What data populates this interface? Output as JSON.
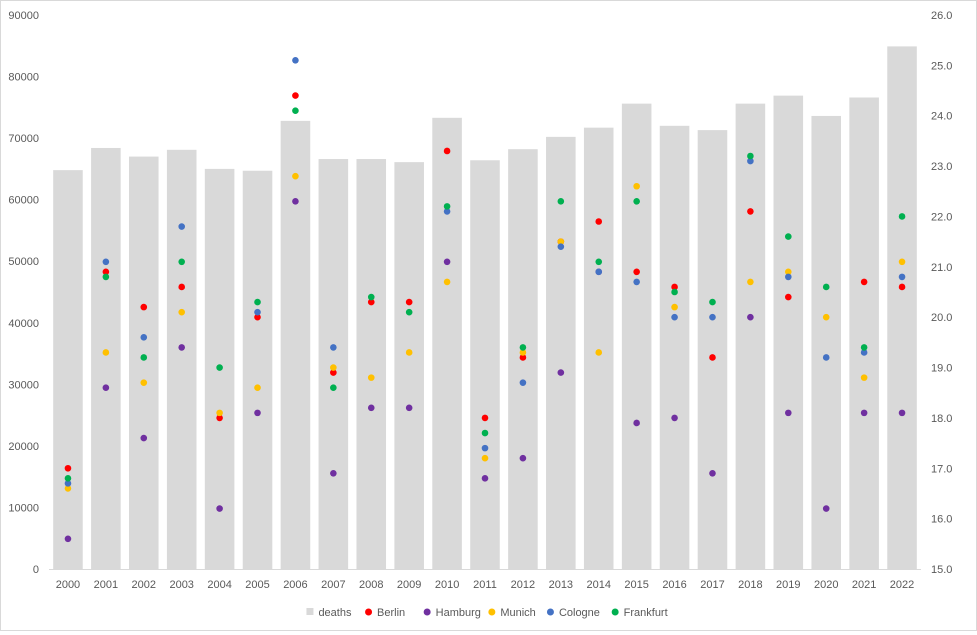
{
  "chart_data": {
    "type": "bar",
    "categories": [
      "2000",
      "2001",
      "2002",
      "2003",
      "2004",
      "2005",
      "2006",
      "2007",
      "2008",
      "2009",
      "2010",
      "2011",
      "2012",
      "2013",
      "2014",
      "2015",
      "2016",
      "2017",
      "2018",
      "2019",
      "2020",
      "2021",
      "2022"
    ],
    "bar_series": {
      "name": "deaths",
      "color": "#d9d9d9",
      "axis": "left",
      "values": [
        64800,
        68400,
        67000,
        68100,
        65000,
        64700,
        72800,
        66600,
        66600,
        66100,
        73300,
        66400,
        68200,
        70200,
        71700,
        75600,
        72000,
        71300,
        75600,
        76900,
        73600,
        76600,
        84900
      ]
    },
    "scatter_series": [
      {
        "name": "Berlin",
        "color": "#ff0000",
        "axis": "right",
        "values": [
          17.0,
          20.9,
          20.2,
          20.6,
          18.0,
          20.0,
          24.4,
          18.9,
          20.3,
          20.3,
          23.3,
          18.0,
          19.2,
          21.5,
          21.9,
          20.9,
          20.6,
          19.2,
          22.1,
          20.4,
          null,
          20.7,
          20.6
        ]
      },
      {
        "name": "Hamburg",
        "color": "#7030a0",
        "axis": "right",
        "values": [
          15.6,
          18.6,
          17.6,
          19.4,
          16.2,
          18.1,
          22.3,
          16.9,
          18.2,
          18.2,
          21.1,
          16.8,
          17.2,
          18.9,
          20.9,
          17.9,
          18.0,
          16.9,
          20.0,
          18.1,
          16.2,
          18.1,
          18.1
        ]
      },
      {
        "name": "Munich",
        "color": "#ffc000",
        "axis": "right",
        "values": [
          16.6,
          19.3,
          18.7,
          20.1,
          18.1,
          18.6,
          22.8,
          19.0,
          18.8,
          19.3,
          20.7,
          17.2,
          19.3,
          21.5,
          19.3,
          22.6,
          20.2,
          null,
          20.7,
          20.9,
          20.0,
          18.8,
          21.1
        ]
      },
      {
        "name": "Cologne",
        "color": "#4472c4",
        "axis": "right",
        "values": [
          16.7,
          21.1,
          19.6,
          21.8,
          null,
          20.1,
          25.1,
          19.4,
          null,
          null,
          22.1,
          17.4,
          18.7,
          21.4,
          20.9,
          20.7,
          20.0,
          20.0,
          23.1,
          20.8,
          19.2,
          19.3,
          20.8
        ]
      },
      {
        "name": "Frankfurt",
        "color": "#00b050",
        "axis": "right",
        "values": [
          16.8,
          20.8,
          19.2,
          21.1,
          19.0,
          20.3,
          24.1,
          18.6,
          20.4,
          20.1,
          22.2,
          17.7,
          19.4,
          22.3,
          21.1,
          22.3,
          20.5,
          20.3,
          23.2,
          21.6,
          20.6,
          19.4,
          22.0
        ]
      }
    ],
    "y_left": {
      "min": 0,
      "max": 90000,
      "step": 10000,
      "ticks": [
        "0",
        "10000",
        "20000",
        "30000",
        "40000",
        "50000",
        "60000",
        "70000",
        "80000",
        "90000"
      ]
    },
    "y_right": {
      "min": 15.0,
      "max": 26.0,
      "step": 1.0,
      "ticks": [
        "15.0",
        "16.0",
        "17.0",
        "18.0",
        "19.0",
        "20.0",
        "21.0",
        "22.0",
        "23.0",
        "24.0",
        "25.0",
        "26.0"
      ]
    },
    "legend_position": "bottom",
    "legend": [
      {
        "label": "deaths",
        "color": "#d9d9d9",
        "marker": "square"
      },
      {
        "label": "Berlin",
        "color": "#ff0000",
        "marker": "circle"
      },
      {
        "label": "Hamburg",
        "color": "#7030a0",
        "marker": "circle"
      },
      {
        "label": "Munich",
        "color": "#ffc000",
        "marker": "circle"
      },
      {
        "label": "Cologne",
        "color": "#4472c4",
        "marker": "circle"
      },
      {
        "label": "Frankfurt",
        "color": "#00b050",
        "marker": "circle"
      }
    ],
    "grid": false,
    "title": "",
    "xlabel": "",
    "ylabel": ""
  }
}
